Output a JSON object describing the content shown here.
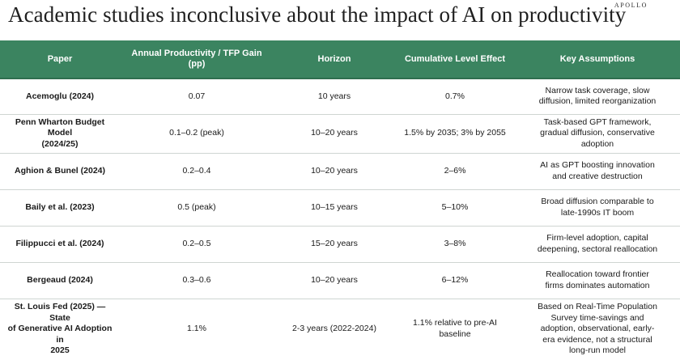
{
  "header": {
    "title": "Academic studies inconclusive about the impact of AI on productivity",
    "brand": "APOLLO"
  },
  "table": {
    "columns": [
      "Paper",
      "Annual Productivity / TFP Gain (pp)",
      "Horizon",
      "Cumulative Level Effect",
      "Key Assumptions"
    ],
    "rows": [
      {
        "paper": "Acemoglu (2024)",
        "gain": "0.07",
        "horizon": "10 years",
        "effect": "0.7%",
        "assumptions": "Narrow task coverage, slow\ndiffusion, limited reorganization"
      },
      {
        "paper": "Penn Wharton Budget Model\n(2024/25)",
        "gain": "0.1–0.2 (peak)",
        "horizon": "10–20 years",
        "effect": "1.5% by 2035; 3% by 2055",
        "assumptions": "Task-based GPT framework,\ngradual diffusion, conservative\nadoption"
      },
      {
        "paper": "Aghion & Bunel (2024)",
        "gain": "0.2–0.4",
        "horizon": "10–20 years",
        "effect": "2–6%",
        "assumptions": "AI as GPT boosting innovation\nand creative destruction"
      },
      {
        "paper": "Baily et al. (2023)",
        "gain": "0.5 (peak)",
        "horizon": "10–15 years",
        "effect": "5–10%",
        "assumptions": "Broad diffusion comparable to\nlate-1990s IT boom"
      },
      {
        "paper": "Filippucci et al. (2024)",
        "gain": "0.2–0.5",
        "horizon": "15–20 years",
        "effect": "3–8%",
        "assumptions": "Firm-level adoption, capital\ndeepening, sectoral reallocation"
      },
      {
        "paper": "Bergeaud (2024)",
        "gain": "0.3–0.6",
        "horizon": "10–20 years",
        "effect": "6–12%",
        "assumptions": "Reallocation toward frontier\nfirms dominates automation"
      },
      {
        "paper": "St. Louis Fed (2025) — State\nof Generative AI Adoption in\n2025",
        "gain": "1.1%",
        "horizon": "2-3 years (2022-2024)",
        "effect": "1.1% relative to pre-AI baseline",
        "assumptions": "Based on Real-Time Population\nSurvey time-savings and\nadoption, observational, early-\nera evidence, not a structural\nlong-run model"
      }
    ]
  },
  "colors": {
    "header_bg": "#3b8460",
    "header_text": "#ffffff",
    "row_divider": "#cfd5d2"
  }
}
